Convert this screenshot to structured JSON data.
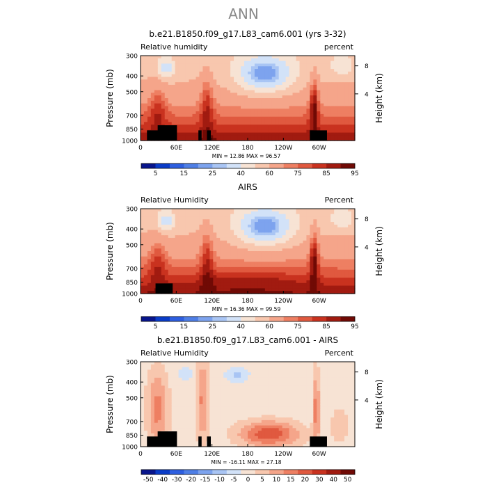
{
  "figure": {
    "suptitle": "ANN"
  },
  "colors": {
    "abs": [
      "#08158c",
      "#0a3cc8",
      "#2e5fe0",
      "#4f7fe6",
      "#7da3ee",
      "#a9c5f4",
      "#d2e2f8",
      "#f7e3d4",
      "#f8c7ae",
      "#f5a58a",
      "#ee7f62",
      "#e0593f",
      "#c9321f",
      "#a11b10",
      "#700a05"
    ],
    "diff": [
      "#08158c",
      "#0a3cc8",
      "#2e5fe0",
      "#4f7fe6",
      "#7da3ee",
      "#a9c5f4",
      "#d2e2f8",
      "#f7e3d4",
      "#f8c7ae",
      "#f5a58a",
      "#ee7f62",
      "#e0593f",
      "#c9321f",
      "#a11b10",
      "#700a05"
    ]
  },
  "chart_data": [
    {
      "type": "heatmap",
      "title": "b.e21.B1850.f09_g17.L83_cam6.001 (yrs 3-32)",
      "left_label": "Relative humidity",
      "right_label": "percent",
      "ylabel": "Pressure (mb)",
      "y2label": "Height (km)",
      "y_ticks": [
        300,
        400,
        500,
        700,
        850,
        1000
      ],
      "y2_ticks": [
        8,
        4
      ],
      "x_ticks": [
        "0",
        "60E",
        "120E",
        "180",
        "120W",
        "60W"
      ],
      "x_range": [
        0,
        360
      ],
      "ylim": [
        1000,
        300
      ],
      "stats": "MIN =   12.86   MAX =   96.57",
      "colorbar_labels": [
        "5",
        "15",
        "25",
        "40",
        "60",
        "75",
        "85",
        "95"
      ],
      "palette": "abs"
    },
    {
      "type": "heatmap",
      "title": "AIRS",
      "left_label": "Relative Humidity",
      "right_label": "Percent",
      "ylabel": "Pressure (mb)",
      "y2label": "Height (km)",
      "y_ticks": [
        300,
        400,
        500,
        700,
        850,
        1000
      ],
      "y2_ticks": [
        8,
        4
      ],
      "x_ticks": [
        "0",
        "60E",
        "120E",
        "180",
        "120W",
        "60W"
      ],
      "x_range": [
        0,
        360
      ],
      "ylim": [
        1000,
        300
      ],
      "stats": "MIN =   16.36   MAX =   99.59",
      "colorbar_labels": [
        "5",
        "15",
        "25",
        "40",
        "60",
        "75",
        "85",
        "95"
      ],
      "palette": "abs"
    },
    {
      "type": "heatmap",
      "title": "b.e21.B1850.f09_g17.L83_cam6.001 - AIRS",
      "left_label": "Relative Humidity",
      "right_label": "Percent",
      "ylabel": "Pressure (mb)",
      "y2label": "Height (km)",
      "y_ticks": [
        300,
        400,
        500,
        700,
        850,
        1000
      ],
      "y2_ticks": [
        8,
        4
      ],
      "x_ticks": [
        "0",
        "60E",
        "120E",
        "180",
        "120W",
        "60W"
      ],
      "x_range": [
        0,
        360
      ],
      "ylim": [
        1000,
        300
      ],
      "stats": "MIN =  -16.11   MAX =   27.18",
      "colorbar_labels": [
        "-50",
        "-40",
        "-30",
        "-20",
        "-15",
        "-10",
        "-5",
        "0",
        "5",
        "10",
        "15",
        "20",
        "30",
        "40",
        "50"
      ],
      "palette": "diff"
    }
  ]
}
